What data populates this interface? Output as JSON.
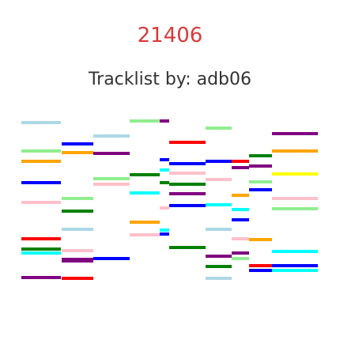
{
  "header": {
    "title": "21406",
    "subtitle": "Tracklist by: adb06"
  },
  "colors": {
    "title": "#d93a3a",
    "subtitle": "#333333",
    "palette": {
      "lb": "#add8e6",
      "bl": "#0000ff",
      "lg": "#90ee90",
      "or": "#ffa500",
      "pu": "#800080",
      "pk": "#ffc0cb",
      "gr": "#008000",
      "rd": "#ff0000",
      "cy": "#00ffff",
      "ye": "#ffff00"
    }
  },
  "tracks": [
    [
      "lb",
      "lg",
      "or",
      "bl",
      "pk",
      "rd",
      "gr",
      "cy",
      "pu"
    ],
    [
      "bl",
      "or",
      "lg",
      "gr",
      "lb",
      "pk",
      "pu",
      "pu",
      "rd"
    ],
    [
      "lb",
      "pu",
      "lg",
      "pk",
      "bl"
    ],
    [
      "lg",
      "gr",
      "cy",
      "or",
      "pk"
    ],
    [
      "pu",
      "bl",
      "cy",
      "gr",
      "pk",
      "cy",
      "bl"
    ],
    [
      "rd",
      "bl",
      "pk",
      "gr",
      "pu",
      "bl",
      "gr"
    ],
    [
      "lg",
      "bl",
      "pk",
      "cy",
      "lb",
      "pu",
      "gr",
      "lb"
    ],
    [
      "rd",
      "pu",
      "or",
      "cy",
      "bl",
      "pk",
      "pu",
      "lg"
    ],
    [
      "gr",
      "pu",
      "lg",
      "bl",
      "or",
      "rd",
      "bl"
    ],
    [
      "pu",
      "or",
      "ye",
      "pk",
      "lg",
      "cy",
      "bl",
      "cy"
    ]
  ]
}
